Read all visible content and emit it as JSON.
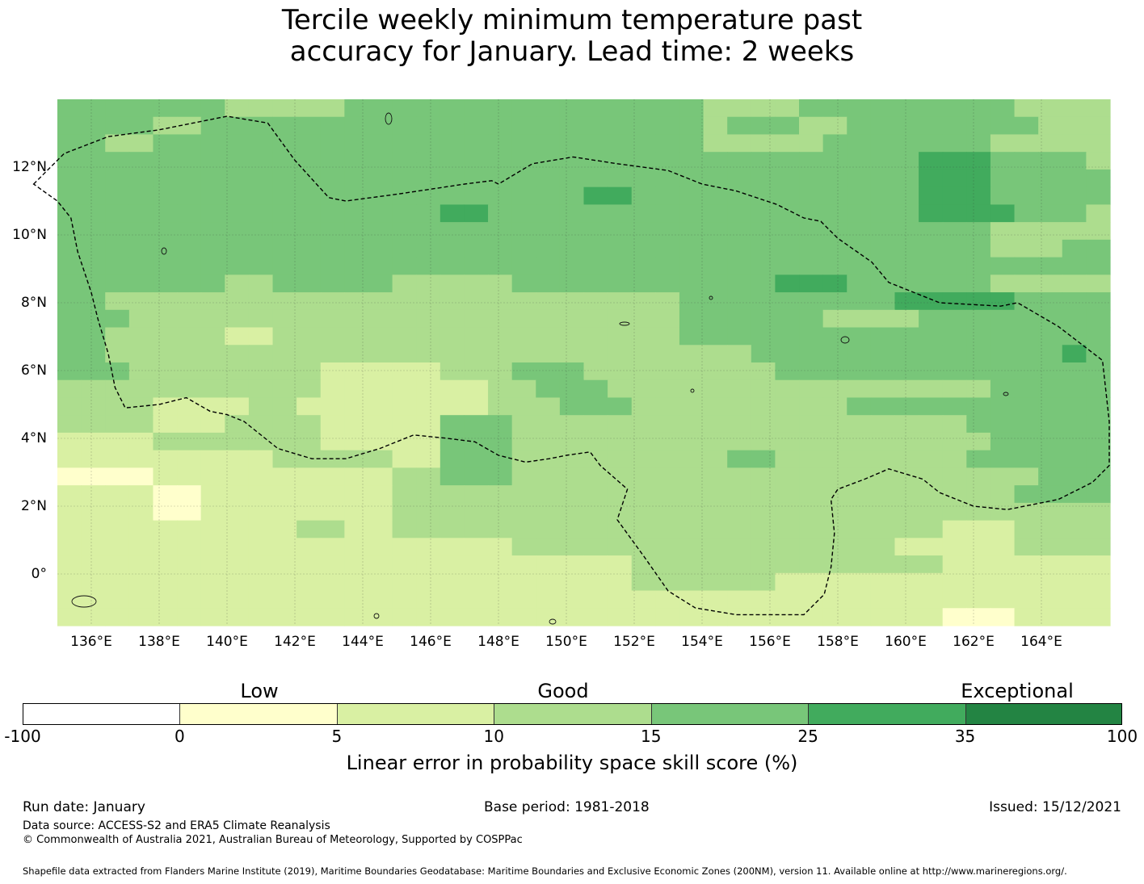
{
  "title": {
    "line1": "Tercile weekly minimum temperature past",
    "line2": "accuracy for January. Lead time: 2 weeks"
  },
  "map": {
    "lon_labels": [
      "136°E",
      "138°E",
      "140°E",
      "142°E",
      "144°E",
      "146°E",
      "148°E",
      "150°E",
      "152°E",
      "154°E",
      "156°E",
      "158°E",
      "160°E",
      "162°E",
      "164°E"
    ],
    "lat_labels": [
      "12°N",
      "10°N",
      "8°N",
      "6°N",
      "4°N",
      "2°N",
      "0°"
    ],
    "lon_range": [
      134.0,
      166.0
    ],
    "lat_range": [
      -1.5,
      14.0
    ],
    "boundary": [
      [
        134.3,
        11.5
      ],
      [
        135.2,
        12.4
      ],
      [
        136.5,
        12.9
      ],
      [
        138.0,
        13.1
      ],
      [
        140.0,
        13.5
      ],
      [
        141.2,
        13.3
      ],
      [
        142.0,
        12.2
      ],
      [
        143.0,
        11.1
      ],
      [
        143.5,
        11.0
      ],
      [
        145.0,
        11.2
      ],
      [
        147.0,
        11.5
      ],
      [
        147.8,
        11.6
      ],
      [
        148.0,
        11.5
      ],
      [
        149.0,
        12.1
      ],
      [
        150.2,
        12.3
      ],
      [
        151.5,
        12.1
      ],
      [
        153.0,
        11.9
      ],
      [
        154.0,
        11.5
      ],
      [
        155.0,
        11.3
      ],
      [
        156.2,
        10.9
      ],
      [
        157.0,
        10.5
      ],
      [
        157.5,
        10.4
      ],
      [
        158.0,
        9.9
      ],
      [
        159.0,
        9.2
      ],
      [
        159.5,
        8.6
      ],
      [
        161.0,
        8.0
      ],
      [
        162.8,
        7.9
      ],
      [
        163.3,
        8.0
      ],
      [
        164.5,
        7.3
      ],
      [
        165.8,
        6.3
      ],
      [
        166.0,
        4.5
      ],
      [
        166.0,
        3.2
      ],
      [
        165.5,
        2.7
      ],
      [
        164.5,
        2.2
      ],
      [
        163.0,
        1.9
      ],
      [
        162.0,
        2.0
      ],
      [
        161.0,
        2.4
      ],
      [
        160.5,
        2.8
      ],
      [
        159.5,
        3.1
      ],
      [
        158.8,
        2.8
      ],
      [
        158.0,
        2.5
      ],
      [
        157.8,
        2.2
      ],
      [
        157.9,
        1.2
      ],
      [
        157.8,
        0.2
      ],
      [
        157.6,
        -0.6
      ],
      [
        157.0,
        -1.2
      ],
      [
        155.0,
        -1.2
      ],
      [
        153.8,
        -1.0
      ],
      [
        153.0,
        -0.5
      ],
      [
        152.3,
        0.5
      ],
      [
        151.5,
        1.6
      ],
      [
        151.8,
        2.5
      ],
      [
        151.0,
        3.2
      ],
      [
        150.7,
        3.6
      ],
      [
        150.0,
        3.5
      ],
      [
        149.5,
        3.4
      ],
      [
        148.8,
        3.3
      ],
      [
        148.0,
        3.5
      ],
      [
        147.3,
        3.9
      ],
      [
        146.5,
        4.0
      ],
      [
        145.5,
        4.1
      ],
      [
        144.5,
        3.7
      ],
      [
        143.5,
        3.4
      ],
      [
        142.5,
        3.4
      ],
      [
        141.5,
        3.7
      ],
      [
        140.5,
        4.5
      ],
      [
        140.0,
        4.7
      ],
      [
        139.5,
        4.8
      ],
      [
        138.8,
        5.2
      ],
      [
        138.0,
        5.0
      ],
      [
        137.0,
        4.9
      ],
      [
        136.7,
        5.5
      ],
      [
        136.5,
        6.5
      ],
      [
        136.2,
        7.5
      ],
      [
        136.0,
        8.3
      ],
      [
        135.6,
        9.5
      ],
      [
        135.4,
        10.5
      ],
      [
        135.0,
        11.0
      ],
      [
        134.3,
        11.5
      ]
    ]
  },
  "colorbar": {
    "categories": [
      "Low",
      "Good",
      "Exceptional"
    ],
    "ticks": [
      "-100",
      "0",
      "5",
      "10",
      "15",
      "25",
      "35",
      "100"
    ],
    "colors": [
      "#ffffff",
      "#ffffcc",
      "#d9f0a3",
      "#addd8e",
      "#78c679",
      "#41ab5d",
      "#238443"
    ],
    "label": "Linear error in probability space skill score (%)"
  },
  "footer": {
    "run_date": "Run date: January",
    "base_period": "Base period: 1981-2018",
    "issued": "Issued: 15/12/2021",
    "data_source": "Data source: ACCESS-S2 and ERA5 Climate Reanalysis",
    "copyright": "© Commonwealth of Australia 2021, Australian Bureau of Meteorology, Supported by COSPPac",
    "shapefile": "Shapefile data extracted from Flanders Marine Institute (2019), Maritime Boundaries Geodatabase: Maritime Boundaries and Exclusive Economic Zones (200NM), version 11. Available online at http://www.marineregions.org/."
  }
}
